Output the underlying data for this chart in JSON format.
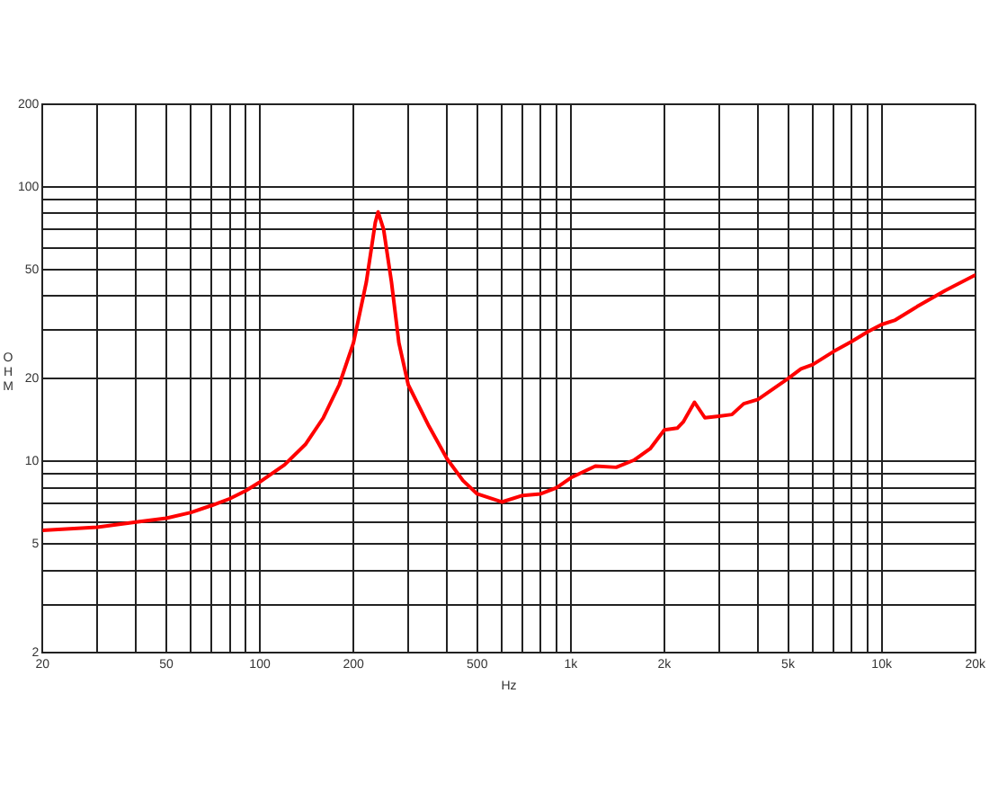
{
  "chart_data": {
    "type": "line",
    "xlabel": "Hz",
    "ylabel": "OHM",
    "log": "xy",
    "grid": true,
    "marker": "none",
    "line_style": "solid",
    "xlim": [
      20,
      20000
    ],
    "ylim": [
      2,
      200
    ],
    "xticks": [
      20,
      {
        "value": 30,
        "label": null
      },
      {
        "value": 40,
        "label": null
      },
      50,
      {
        "value": 60,
        "label": null
      },
      {
        "value": 70,
        "label": null
      },
      {
        "value": 80,
        "label": null
      },
      {
        "value": 90,
        "label": null
      },
      100,
      200,
      {
        "value": 300,
        "label": null
      },
      {
        "value": 400,
        "label": null
      },
      500,
      {
        "value": 600,
        "label": null
      },
      {
        "value": 700,
        "label": null
      },
      {
        "value": 800,
        "label": null
      },
      {
        "value": 900,
        "label": null
      },
      {
        "value": 1000,
        "label": "1k"
      },
      {
        "value": 2000,
        "label": "2k"
      },
      {
        "value": 3000,
        "label": null
      },
      {
        "value": 4000,
        "label": null
      },
      {
        "value": 5000,
        "label": "5k"
      },
      {
        "value": 6000,
        "label": null
      },
      {
        "value": 7000,
        "label": null
      },
      {
        "value": 8000,
        "label": null
      },
      {
        "value": 9000,
        "label": null
      },
      {
        "value": 10000,
        "label": "10k"
      },
      {
        "value": 20000,
        "label": "20k"
      }
    ],
    "yticks": [
      2,
      {
        "value": 3,
        "label": null
      },
      {
        "value": 4,
        "label": null
      },
      5,
      {
        "value": 6,
        "label": null
      },
      {
        "value": 7,
        "label": null
      },
      {
        "value": 8,
        "label": null
      },
      {
        "value": 9,
        "label": null
      },
      10,
      20,
      {
        "value": 30,
        "label": null
      },
      {
        "value": 40,
        "label": null
      },
      50,
      {
        "value": 60,
        "label": null
      },
      {
        "value": 70,
        "label": null
      },
      {
        "value": 80,
        "label": null
      },
      {
        "value": 90,
        "label": null
      },
      100,
      200
    ],
    "x": [
      20,
      30,
      40,
      50,
      60,
      70,
      80,
      90,
      100,
      120,
      140,
      160,
      180,
      200,
      220,
      235,
      240,
      250,
      265,
      280,
      300,
      350,
      400,
      450,
      500,
      600,
      700,
      800,
      900,
      1000,
      1200,
      1400,
      1600,
      1800,
      2000,
      2200,
      2300,
      2500,
      2700,
      3000,
      3300,
      3600,
      4000,
      5000,
      5500,
      6000,
      7000,
      8000,
      9000,
      10000,
      11000,
      13000,
      16000,
      20000
    ],
    "series": [
      {
        "color": "#ff0000",
        "values": [
          5.6,
          5.75,
          6.0,
          6.2,
          6.5,
          6.9,
          7.3,
          7.8,
          8.4,
          9.7,
          11.5,
          14.4,
          19,
          27,
          45,
          74,
          81,
          70,
          45,
          27,
          19,
          13.4,
          10.2,
          8.5,
          7.6,
          7.1,
          7.5,
          7.6,
          8.0,
          8.7,
          9.6,
          9.5,
          10.1,
          11.1,
          13,
          13.2,
          13.9,
          16.4,
          14.4,
          14.6,
          14.8,
          16.2,
          16.8,
          20,
          21.7,
          22.5,
          25.1,
          27.3,
          29.6,
          31.5,
          32.6,
          36.6,
          41.9,
          47.7
        ]
      }
    ]
  }
}
